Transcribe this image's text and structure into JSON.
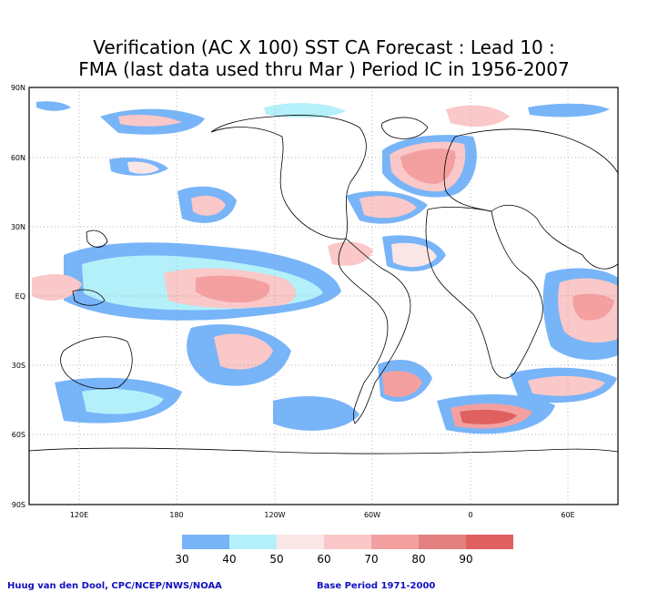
{
  "title_line1": "Verification (AC X 100) SST CA Forecast : Lead 10 :",
  "title_line2": "FMA (last data used thru Mar ) Period IC in 1956-2007",
  "lat_labels": [
    "90N",
    "60N",
    "30N",
    "EQ",
    "30S",
    "60S",
    "90S"
  ],
  "lon_labels": [
    "120E",
    "180",
    "120W",
    "60W",
    "0",
    "60E"
  ],
  "legend": {
    "labels": [
      "30",
      "40",
      "50",
      "60",
      "70",
      "80",
      "90"
    ],
    "colors": [
      "#78b4f8",
      "#b4f0fa",
      "#fae6e6",
      "#fac8c8",
      "#f4a0a0",
      "#e48080",
      "#e06060"
    ]
  },
  "footer": {
    "credit": "Huug van den Dool, CPC/NCEP/NWS/NOAA",
    "base_period": "Base Period 1971-2000"
  }
}
